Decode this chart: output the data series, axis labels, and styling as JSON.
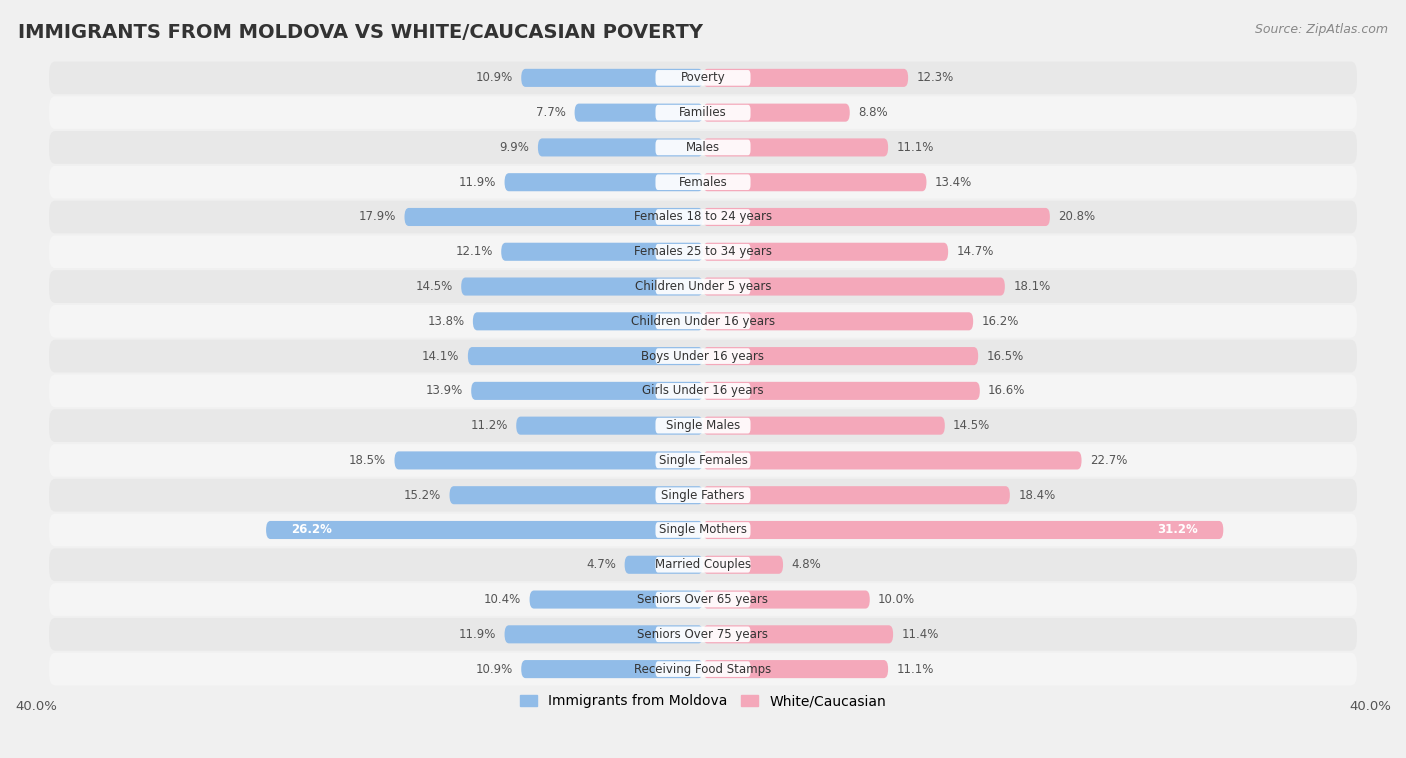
{
  "title": "IMMIGRANTS FROM MOLDOVA VS WHITE/CAUCASIAN POVERTY",
  "source": "Source: ZipAtlas.com",
  "categories": [
    "Poverty",
    "Families",
    "Males",
    "Females",
    "Females 18 to 24 years",
    "Females 25 to 34 years",
    "Children Under 5 years",
    "Children Under 16 years",
    "Boys Under 16 years",
    "Girls Under 16 years",
    "Single Males",
    "Single Females",
    "Single Fathers",
    "Single Mothers",
    "Married Couples",
    "Seniors Over 65 years",
    "Seniors Over 75 years",
    "Receiving Food Stamps"
  ],
  "moldova_values": [
    10.9,
    7.7,
    9.9,
    11.9,
    17.9,
    12.1,
    14.5,
    13.8,
    14.1,
    13.9,
    11.2,
    18.5,
    15.2,
    26.2,
    4.7,
    10.4,
    11.9,
    10.9
  ],
  "white_values": [
    12.3,
    8.8,
    11.1,
    13.4,
    20.8,
    14.7,
    18.1,
    16.2,
    16.5,
    16.6,
    14.5,
    22.7,
    18.4,
    31.2,
    4.8,
    10.0,
    11.4,
    11.1
  ],
  "moldova_color": "#91bce8",
  "white_color": "#f4a8ba",
  "bar_height": 0.52,
  "xlim": 40.0,
  "row_bg_even": "#e8e8e8",
  "row_bg_odd": "#f5f5f5",
  "legend_moldova": "Immigrants from Moldova",
  "legend_white": "White/Caucasian",
  "title_fontsize": 14,
  "source_fontsize": 9,
  "label_fontsize": 8.5,
  "value_fontsize": 8.5
}
